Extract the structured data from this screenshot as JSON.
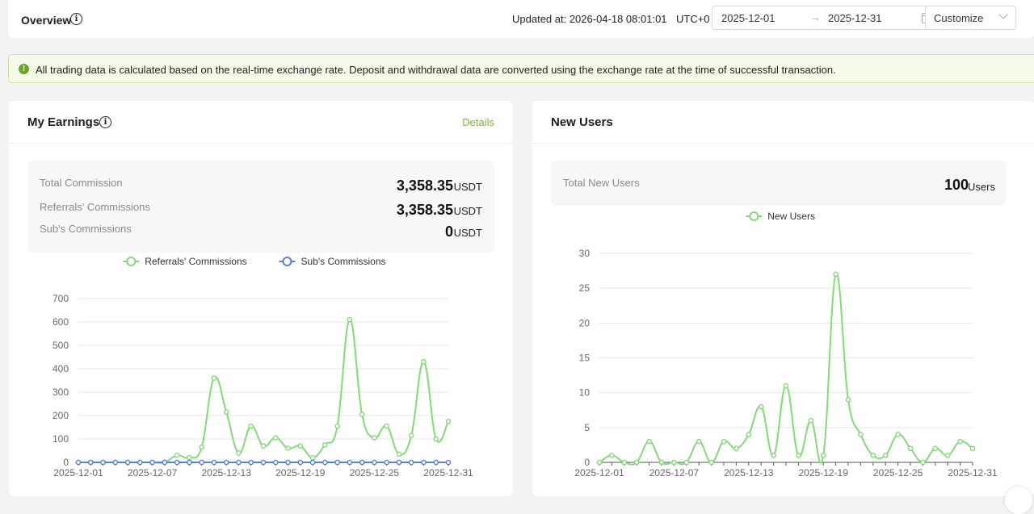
{
  "header": {
    "title": "Overview",
    "updated_at": "Updated at: 2026-04-18 08:01:01",
    "timezone": "UTC+0",
    "date_start": "2025-12-01",
    "date_end": "2025-12-31",
    "range_select": "Customize"
  },
  "notice": {
    "text": "All trading data is calculated based on the real-time exchange rate. Deposit and withdrawal data are converted using the exchange rate at the time of successful transaction."
  },
  "earnings": {
    "title": "My Earnings",
    "details_label": "Details",
    "rows": [
      {
        "label": "Total Commission",
        "value": "3,358.35",
        "unit": "USDT"
      },
      {
        "label": "Referrals' Commissions",
        "value": "3,358.35",
        "unit": "USDT"
      },
      {
        "label": "Sub's Commissions",
        "value": "0",
        "unit": "USDT"
      }
    ]
  },
  "new_users": {
    "title": "New Users",
    "label": "Total New Users",
    "value": "100",
    "unit": "Users"
  },
  "colors": {
    "green": "#86d87a",
    "blue": "#5b7fe0",
    "accent": "#7cb82f"
  },
  "chart_data": [
    {
      "type": "line",
      "x": [
        "2025-12-01",
        "2025-12-02",
        "2025-12-03",
        "2025-12-04",
        "2025-12-05",
        "2025-12-06",
        "2025-12-07",
        "2025-12-08",
        "2025-12-09",
        "2025-12-10",
        "2025-12-11",
        "2025-12-12",
        "2025-12-13",
        "2025-12-14",
        "2025-12-15",
        "2025-12-16",
        "2025-12-17",
        "2025-12-18",
        "2025-12-19",
        "2025-12-20",
        "2025-12-21",
        "2025-12-22",
        "2025-12-23",
        "2025-12-24",
        "2025-12-25",
        "2025-12-26",
        "2025-12-27",
        "2025-12-28",
        "2025-12-29",
        "2025-12-30",
        "2025-12-31"
      ],
      "xticks": [
        "2025-12-01",
        "2025-12-07",
        "2025-12-13",
        "2025-12-19",
        "2025-12-25",
        "2025-12-31"
      ],
      "ylim": [
        0,
        700
      ],
      "yticks": [
        "0",
        "100",
        "200",
        "300",
        "400",
        "500",
        "600",
        "700"
      ],
      "grid": true,
      "legend_position": "top",
      "series": [
        {
          "name": "Referrals' Commissions",
          "color": "#86d87a",
          "values": [
            0,
            0,
            0,
            0,
            0,
            0,
            0,
            0,
            30,
            20,
            65,
            360,
            215,
            40,
            155,
            70,
            105,
            60,
            70,
            20,
            75,
            155,
            610,
            205,
            105,
            155,
            35,
            115,
            430,
            100,
            175
          ]
        },
        {
          "name": "Sub's Commissions",
          "color": "#5b7fe0",
          "values": [
            0,
            0,
            0,
            0,
            0,
            0,
            0,
            0,
            0,
            0,
            0,
            0,
            0,
            0,
            0,
            0,
            0,
            0,
            0,
            0,
            0,
            0,
            0,
            0,
            0,
            0,
            0,
            0,
            0,
            0,
            0
          ]
        }
      ]
    },
    {
      "type": "line",
      "x": [
        "2025-12-01",
        "2025-12-02",
        "2025-12-03",
        "2025-12-04",
        "2025-12-05",
        "2025-12-06",
        "2025-12-07",
        "2025-12-08",
        "2025-12-09",
        "2025-12-10",
        "2025-12-11",
        "2025-12-12",
        "2025-12-13",
        "2025-12-14",
        "2025-12-15",
        "2025-12-16",
        "2025-12-17",
        "2025-12-18",
        "2025-12-19",
        "2025-12-20",
        "2025-12-21",
        "2025-12-22",
        "2025-12-23",
        "2025-12-24",
        "2025-12-25",
        "2025-12-26",
        "2025-12-27",
        "2025-12-28",
        "2025-12-29",
        "2025-12-30",
        "2025-12-31"
      ],
      "xticks": [
        "2025-12-01",
        "2025-12-07",
        "2025-12-13",
        "2025-12-19",
        "2025-12-25",
        "2025-12-31"
      ],
      "ylim": [
        0,
        30
      ],
      "yticks": [
        "0",
        "5",
        "10",
        "15",
        "20",
        "25",
        "30"
      ],
      "grid": true,
      "legend_position": "top",
      "series": [
        {
          "name": "New Users",
          "color": "#86d87a",
          "values": [
            0,
            1,
            0,
            0,
            3,
            0,
            0,
            0,
            3,
            0,
            3,
            2,
            4,
            8,
            1,
            11,
            1,
            6,
            1,
            27,
            9,
            4,
            1,
            1,
            4,
            2,
            0,
            2,
            1,
            3,
            2
          ]
        }
      ]
    }
  ]
}
